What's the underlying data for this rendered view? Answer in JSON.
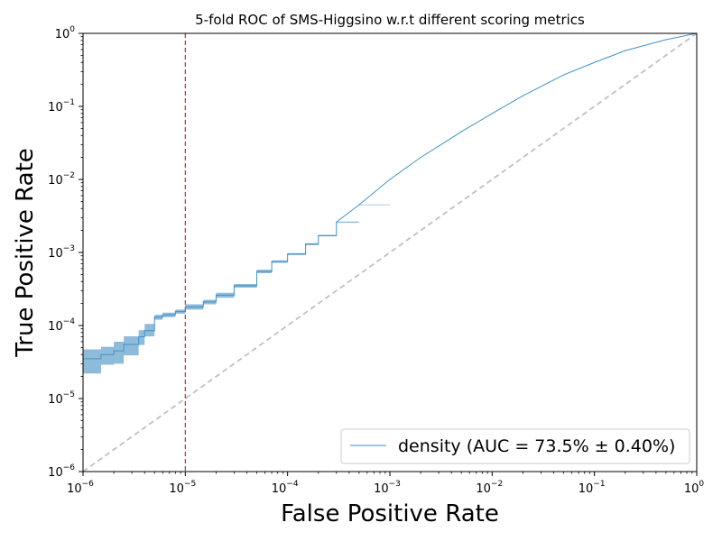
{
  "chart_data": {
    "type": "line",
    "title": "5-fold ROC of SMS-Higgsino w.r.t different scoring metrics",
    "xlabel": "False Positive Rate",
    "ylabel": "True Positive Rate",
    "xscale": "log",
    "yscale": "log",
    "xlim": [
      1e-06,
      1
    ],
    "ylim": [
      1e-06,
      1
    ],
    "x_ticks": [
      {
        "value": 1e-06,
        "mantissa": "10",
        "exp": "−6"
      },
      {
        "value": 1e-05,
        "mantissa": "10",
        "exp": "−5"
      },
      {
        "value": 0.0001,
        "mantissa": "10",
        "exp": "−4"
      },
      {
        "value": 0.001,
        "mantissa": "10",
        "exp": "−3"
      },
      {
        "value": 0.01,
        "mantissa": "10",
        "exp": "−2"
      },
      {
        "value": 0.1,
        "mantissa": "10",
        "exp": "−1"
      },
      {
        "value": 1,
        "mantissa": "10",
        "exp": "0"
      }
    ],
    "y_ticks": [
      {
        "value": 1e-06,
        "mantissa": "10",
        "exp": "−6"
      },
      {
        "value": 1e-05,
        "mantissa": "10",
        "exp": "−5"
      },
      {
        "value": 0.0001,
        "mantissa": "10",
        "exp": "−4"
      },
      {
        "value": 0.001,
        "mantissa": "10",
        "exp": "−3"
      },
      {
        "value": 0.01,
        "mantissa": "10",
        "exp": "−2"
      },
      {
        "value": 0.1,
        "mantissa": "10",
        "exp": "−1"
      },
      {
        "value": 1,
        "mantissa": "10",
        "exp": "0"
      }
    ],
    "grid": false,
    "legend_position": "bottom-right",
    "series": [
      {
        "name": "density (AUC = 73.5% ± 0.40%)",
        "color": "#4292c6",
        "band_color": "#7bafd4",
        "x": [
          1e-06,
          1.5e-06,
          2e-06,
          2.5e-06,
          3e-06,
          3.5e-06,
          4e-06,
          5e-06,
          6e-06,
          8e-06,
          1e-05,
          1.5e-05,
          2e-05,
          3e-05,
          5e-05,
          7e-05,
          0.0001,
          0.00015,
          0.0002,
          0.0003,
          0.0005,
          0.001,
          0.002,
          0.005,
          0.01,
          0.02,
          0.05,
          0.1,
          0.2,
          0.5,
          1
        ],
        "y": [
          3.5e-05,
          4e-05,
          4.5e-05,
          5.5e-05,
          5.5e-05,
          7e-05,
          8.5e-05,
          0.00013,
          0.00014,
          0.000155,
          0.00018,
          0.00021,
          0.00026,
          0.00035,
          0.00055,
          0.00075,
          0.00095,
          0.0013,
          0.0017,
          0.0026,
          0.0045,
          0.01,
          0.02,
          0.045,
          0.08,
          0.14,
          0.27,
          0.4,
          0.58,
          0.82,
          1
        ],
        "y_lower": [
          2.2e-05,
          2.9e-05,
          3e-05,
          3.9e-05,
          3.9e-05,
          5.4e-05,
          7.1e-05,
          0.00012,
          0.00013,
          0.000145,
          0.000165,
          0.000195,
          0.00024,
          0.00033,
          0.00052,
          0.00072,
          0.00092,
          0.00126,
          0.00166,
          0.00255,
          0.00445,
          0.01,
          0.02,
          0.045,
          0.08,
          0.14,
          0.27,
          0.4,
          0.58,
          0.82,
          1
        ],
        "y_upper": [
          4.7e-05,
          5.1e-05,
          6e-05,
          7.1e-05,
          7.1e-05,
          8.6e-05,
          0.000105,
          0.00014,
          0.00015,
          0.000165,
          0.000195,
          0.000225,
          0.00028,
          0.00037,
          0.00058,
          0.00078,
          0.00098,
          0.00134,
          0.00174,
          0.00265,
          0.00455,
          0.01,
          0.02,
          0.045,
          0.08,
          0.14,
          0.27,
          0.4,
          0.58,
          0.82,
          1
        ]
      }
    ],
    "reference_lines": [
      {
        "type": "diagonal",
        "color": "#c0c0c0",
        "style": "dashed"
      },
      {
        "type": "vertical",
        "x": 1e-05,
        "color": "#d62728",
        "style": "dashed"
      }
    ]
  }
}
